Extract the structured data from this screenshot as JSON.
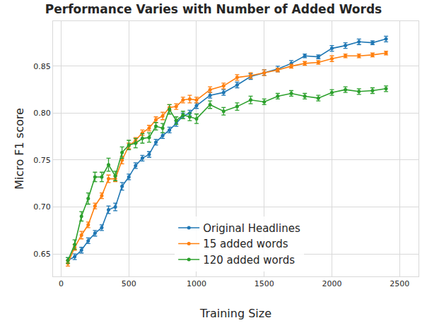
{
  "chart_data": {
    "type": "line",
    "title": "Performance Varies with Number of Added Words",
    "x_label": "Training Size",
    "y_label": "Micro F1 score",
    "x": [
      50,
      100,
      150,
      200,
      250,
      300,
      350,
      400,
      450,
      500,
      550,
      600,
      650,
      700,
      750,
      800,
      850,
      900,
      950,
      1000,
      1100,
      1200,
      1300,
      1400,
      1500,
      1600,
      1700,
      1800,
      1900,
      2000,
      2100,
      2200,
      2300,
      2400
    ],
    "xlim": [
      -60,
      2640
    ],
    "xticks": [
      0,
      500,
      1000,
      1500,
      2000,
      2500
    ],
    "ylim": [
      0.626,
      0.898
    ],
    "yticks": [
      {
        "value": 0.65,
        "label": "0.65"
      },
      {
        "value": 0.7,
        "label": "0.70"
      },
      {
        "value": 0.75,
        "label": "0.75"
      },
      {
        "value": 0.8,
        "label": "0.80"
      },
      {
        "value": 0.85,
        "label": "0.85"
      }
    ],
    "grid": true,
    "legend": "lower center",
    "series": [
      {
        "name": "Original Headlines",
        "color": "#1f77b4",
        "marker": "circle",
        "line_style": "solid",
        "values": [
          0.643,
          0.647,
          0.654,
          0.664,
          0.672,
          0.678,
          0.697,
          0.7,
          0.722,
          0.732,
          0.744,
          0.752,
          0.756,
          0.769,
          0.776,
          0.782,
          0.789,
          0.797,
          0.8,
          0.808,
          0.819,
          0.822,
          0.83,
          0.839,
          0.843,
          0.847,
          0.853,
          0.861,
          0.86,
          0.869,
          0.872,
          0.876,
          0.875,
          0.879
        ],
        "errors": [
          0.003,
          0.003,
          0.003,
          0.003,
          0.003,
          0.003,
          0.004,
          0.004,
          0.004,
          0.003,
          0.003,
          0.003,
          0.003,
          0.003,
          0.003,
          0.003,
          0.003,
          0.003,
          0.003,
          0.003,
          0.003,
          0.003,
          0.003,
          0.003,
          0.003,
          0.003,
          0.003,
          0.002,
          0.002,
          0.003,
          0.003,
          0.003,
          0.002,
          0.003
        ]
      },
      {
        "name": "15 added words",
        "color": "#ff7f0e",
        "marker": "circle",
        "line_style": "solid",
        "values": [
          0.64,
          0.657,
          0.67,
          0.681,
          0.701,
          0.712,
          0.73,
          0.73,
          0.75,
          0.765,
          0.771,
          0.779,
          0.784,
          0.793,
          0.797,
          0.806,
          0.807,
          0.814,
          0.815,
          0.814,
          0.825,
          0.829,
          0.838,
          0.84,
          0.843,
          0.846,
          0.85,
          0.853,
          0.854,
          0.858,
          0.861,
          0.861,
          0.862,
          0.864
        ],
        "errors": [
          0.003,
          0.003,
          0.004,
          0.003,
          0.003,
          0.003,
          0.004,
          0.003,
          0.004,
          0.003,
          0.003,
          0.003,
          0.003,
          0.003,
          0.004,
          0.003,
          0.003,
          0.003,
          0.004,
          0.003,
          0.003,
          0.003,
          0.003,
          0.003,
          0.003,
          0.002,
          0.002,
          0.002,
          0.002,
          0.003,
          0.002,
          0.002,
          0.002,
          0.002
        ]
      },
      {
        "name": "120 added words",
        "color": "#2ca02c",
        "marker": "circle",
        "line_style": "solid",
        "values": [
          0.643,
          0.66,
          0.69,
          0.709,
          0.732,
          0.732,
          0.745,
          0.733,
          0.758,
          0.766,
          0.768,
          0.773,
          0.774,
          0.786,
          0.784,
          0.804,
          0.792,
          0.798,
          0.796,
          0.794,
          0.809,
          0.802,
          0.807,
          0.814,
          0.812,
          0.818,
          0.821,
          0.818,
          0.816,
          0.822,
          0.825,
          0.823,
          0.824,
          0.826
        ],
        "errors": [
          0.003,
          0.005,
          0.005,
          0.006,
          0.005,
          0.005,
          0.007,
          0.005,
          0.006,
          0.005,
          0.005,
          0.005,
          0.005,
          0.004,
          0.005,
          0.005,
          0.004,
          0.004,
          0.004,
          0.005,
          0.004,
          0.004,
          0.004,
          0.004,
          0.003,
          0.003,
          0.003,
          0.003,
          0.003,
          0.003,
          0.003,
          0.003,
          0.003,
          0.003
        ]
      }
    ]
  }
}
